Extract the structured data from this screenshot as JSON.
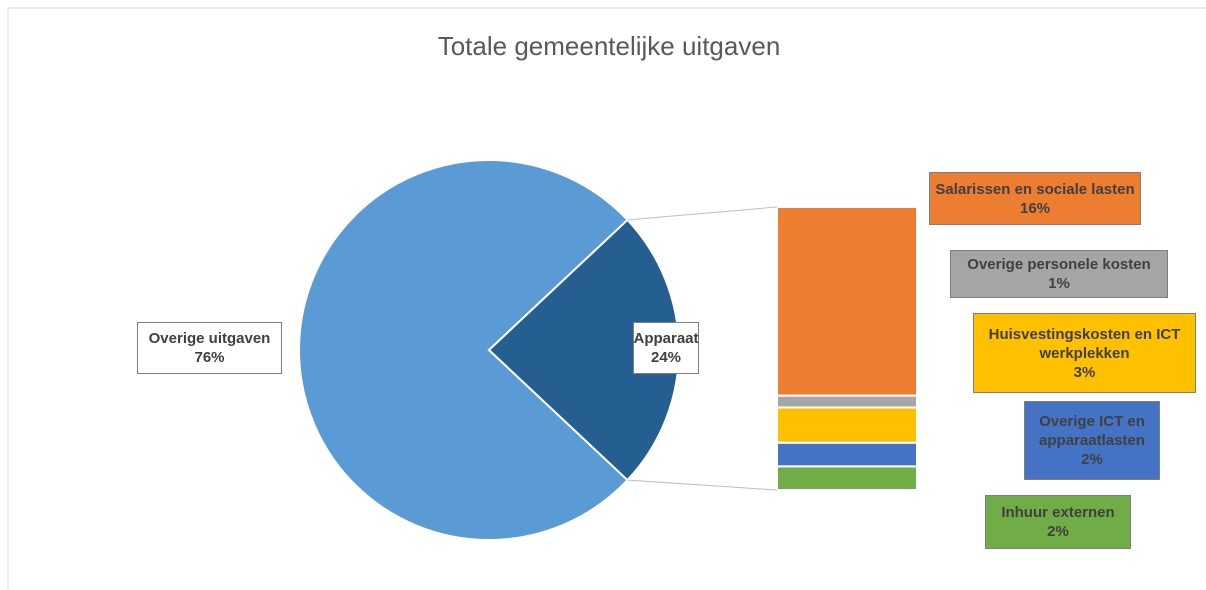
{
  "chart_data": {
    "type": "pie-of-bar",
    "title": "Totale gemeentelijke uitgaven",
    "categories": [
      "Overige uitgaven",
      "Apparaat"
    ],
    "values": [
      76,
      24
    ],
    "value_labels": [
      "76%",
      "24%"
    ],
    "colors": [
      "#5b9bd5",
      "#255e91"
    ],
    "bar": {
      "categories": [
        "Salarissen en sociale lasten",
        "Overige personele kosten",
        "Huisvestingskosten en ICT werkplekken",
        "Overige ICT en apparaatlasten",
        "Inhuur externen"
      ],
      "values": [
        16,
        1,
        3,
        2,
        2
      ],
      "value_labels": [
        "16%",
        "1%",
        "3%",
        "2%",
        "2%"
      ],
      "colors": [
        "#ed7d31",
        "#a5a5a5",
        "#ffc000",
        "#4472c4",
        "#70ad47"
      ]
    }
  }
}
